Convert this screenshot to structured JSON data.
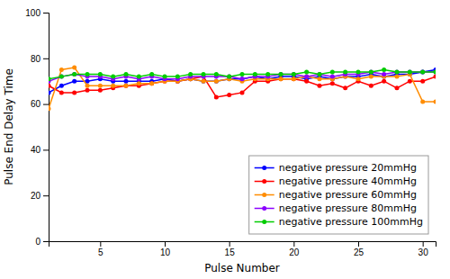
{
  "chart_data": {
    "type": "line",
    "xlabel": "Pulse Number",
    "ylabel": "Pulse End Delay Time",
    "x": [
      1,
      2,
      3,
      4,
      5,
      6,
      7,
      8,
      9,
      10,
      11,
      12,
      13,
      14,
      15,
      16,
      17,
      18,
      19,
      20,
      21,
      22,
      23,
      24,
      25,
      26,
      27,
      28,
      29,
      30,
      31
    ],
    "series": [
      {
        "name": "negative pressure 20mmHg",
        "color": "#0000FF",
        "values": [
          65,
          68,
          70,
          70,
          71,
          70,
          70,
          70,
          70,
          71,
          70,
          71,
          70,
          70,
          71,
          71,
          72,
          71,
          72,
          72,
          71,
          72,
          71,
          72,
          72,
          73,
          72,
          73,
          73,
          74,
          75
        ]
      },
      {
        "name": "negative pressure 40mmHg",
        "color": "#FF0000",
        "values": [
          68,
          65,
          65,
          66,
          66,
          67,
          68,
          68,
          69,
          70,
          70,
          71,
          72,
          63,
          64,
          65,
          70,
          70,
          71,
          71,
          70,
          68,
          69,
          67,
          70,
          68,
          70,
          67,
          70,
          70,
          72
        ]
      },
      {
        "name": "negative pressure 60mmHg",
        "color": "#FF8C00",
        "values": [
          58,
          75,
          76,
          68,
          68,
          68,
          68,
          69,
          69,
          70,
          70,
          71,
          70,
          70,
          71,
          70,
          71,
          71,
          71,
          71,
          72,
          71,
          71,
          72,
          71,
          72,
          72,
          72,
          73,
          61,
          61
        ]
      },
      {
        "name": "negative pressure 80mmHg",
        "color": "#8B00FF",
        "values": [
          70,
          72,
          73,
          72,
          72,
          71,
          72,
          71,
          72,
          71,
          71,
          72,
          72,
          72,
          72,
          71,
          72,
          72,
          73,
          73,
          72,
          73,
          72,
          73,
          73,
          74,
          73,
          74,
          74,
          74,
          74
        ]
      },
      {
        "name": "negative pressure 100mmHg",
        "color": "#00CC00",
        "values": [
          71,
          72,
          73,
          73,
          73,
          72,
          73,
          72,
          73,
          72,
          72,
          73,
          73,
          73,
          72,
          73,
          73,
          73,
          73,
          73,
          74,
          73,
          74,
          74,
          74,
          74,
          75,
          74,
          74,
          74,
          74
        ]
      }
    ],
    "xlim": [
      1,
      31
    ],
    "ylim": [
      0,
      100
    ],
    "xticks": [
      5,
      10,
      15,
      20,
      25,
      30
    ],
    "yticks": [
      0,
      20,
      40,
      60,
      80,
      100
    ],
    "legend": "lower-right",
    "marker": "circle",
    "grid": false
  }
}
